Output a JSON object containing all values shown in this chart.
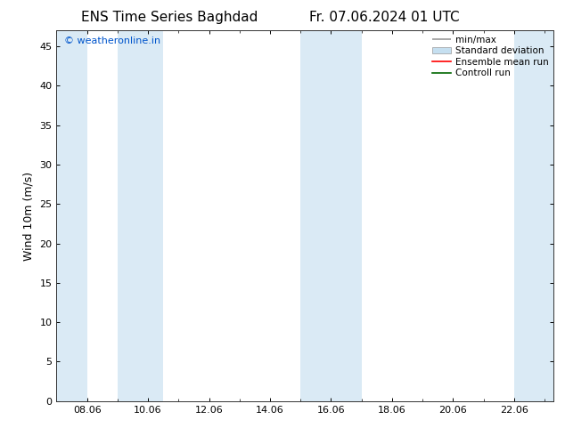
{
  "title_left": "ENS Time Series Baghdad",
  "title_right": "Fr. 07.06.2024 01 UTC",
  "ylabel": "Wind 10m (m/s)",
  "watermark": "© weatheronline.in",
  "watermark_color": "#0055cc",
  "xlim_start": 7.0,
  "xlim_end": 23.3,
  "ylim": [
    0,
    47
  ],
  "yticks": [
    0,
    5,
    10,
    15,
    20,
    25,
    30,
    35,
    40,
    45
  ],
  "xtick_labels": [
    "08.06",
    "10.06",
    "12.06",
    "14.06",
    "16.06",
    "18.06",
    "20.06",
    "22.06"
  ],
  "xtick_positions": [
    8,
    10,
    12,
    14,
    16,
    18,
    20,
    22
  ],
  "bg_color": "#ffffff",
  "plot_bg_color": "#ffffff",
  "shaded_regions": [
    {
      "xstart": 7.0,
      "xend": 8.0,
      "color": "#daeaf5"
    },
    {
      "xstart": 9.0,
      "xend": 10.5,
      "color": "#daeaf5"
    },
    {
      "xstart": 15.0,
      "xend": 15.5,
      "color": "#daeaf5"
    },
    {
      "xstart": 15.5,
      "xend": 17.0,
      "color": "#daeaf5"
    },
    {
      "xstart": 22.0,
      "xend": 23.3,
      "color": "#daeaf5"
    }
  ],
  "legend_entries": [
    {
      "label": "min/max",
      "color": "#999999",
      "type": "errorbar"
    },
    {
      "label": "Standard deviation",
      "color": "#c5dff0",
      "type": "fill"
    },
    {
      "label": "Ensemble mean run",
      "color": "#ff0000",
      "type": "line"
    },
    {
      "label": "Controll run",
      "color": "#006600",
      "type": "line"
    }
  ],
  "title_fontsize": 11,
  "tick_fontsize": 8,
  "ylabel_fontsize": 9,
  "legend_fontsize": 7.5,
  "watermark_fontsize": 8
}
